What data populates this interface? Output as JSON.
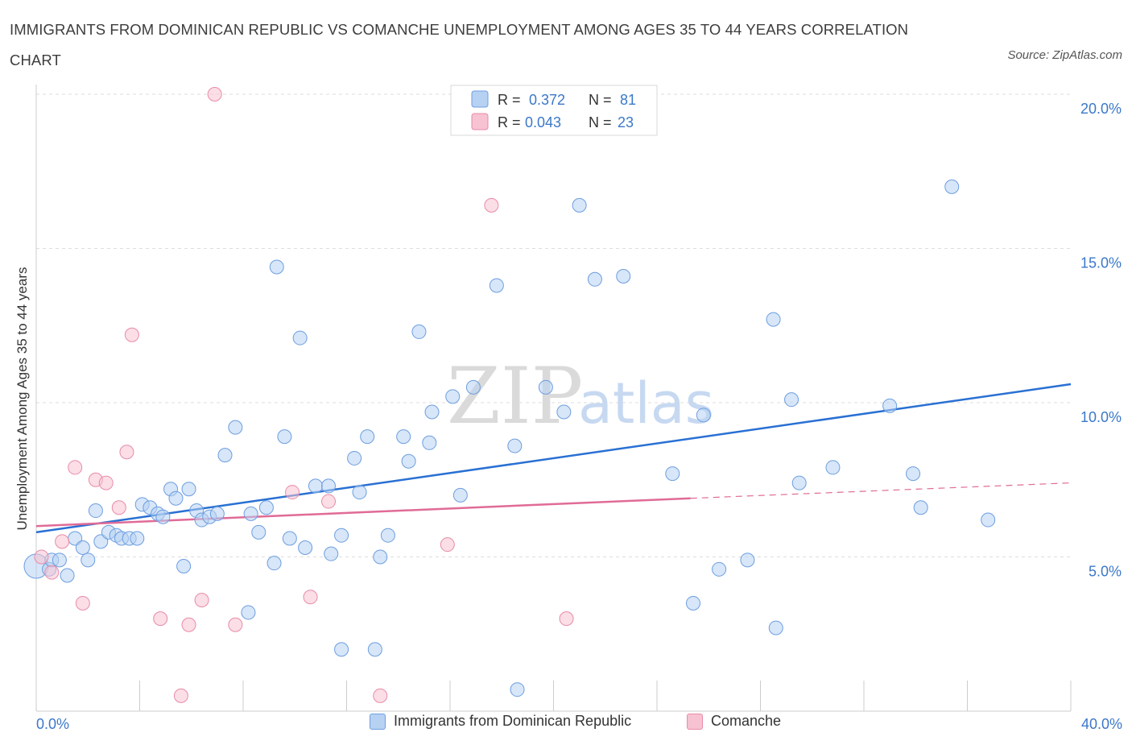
{
  "title": "IMMIGRANTS FROM DOMINICAN REPUBLIC VS COMANCHE UNEMPLOYMENT AMONG AGES 35 TO 44 YEARS CORRELATION CHART",
  "source": "Source: ZipAtlas.com",
  "watermark": {
    "zip": "ZIP",
    "atlas": "atlas"
  },
  "colors": {
    "blue_fill": "#b7d1f3",
    "blue_stroke": "#6d9ee0",
    "blue_line": "#2970d3",
    "pink_fill": "#f7c2d2",
    "pink_stroke": "#e98ba8",
    "pink_line": "#e06b97",
    "axis_text": "#3b78c9",
    "grid": "#dddddd"
  },
  "legend": {
    "rows": [
      {
        "r_label": "R =",
        "r_value": "0.372",
        "n_label": "N =",
        "n_value": "81"
      },
      {
        "r_label": "R =",
        "r_value": "0.043",
        "n_label": "N =",
        "n_value": "23"
      }
    ]
  },
  "chart_data": {
    "type": "scatter",
    "title": "IMMIGRANTS FROM DOMINICAN REPUBLIC VS COMANCHE UNEMPLOYMENT AMONG AGES 35 TO 44 YEARS CORRELATION CHART",
    "xlabel": "",
    "ylabel": "Unemployment Among Ages 35 to 44 years",
    "xlim": [
      0,
      40
    ],
    "ylim": [
      0,
      20
    ],
    "x_tick_labels": [
      "0.0%",
      "40.0%"
    ],
    "y_ticks": [
      {
        "value": 5,
        "label": "5.0%"
      },
      {
        "value": 10,
        "label": "10.0%"
      },
      {
        "value": 15,
        "label": "15.0%"
      },
      {
        "value": 20,
        "label": "20.0%"
      }
    ],
    "grid": true,
    "legend_position": "top-center",
    "series": [
      {
        "name": "Immigrants from Dominican Republic",
        "color": "blue",
        "R": 0.372,
        "N": 81,
        "trend": {
          "x0": 0,
          "y0": 5.8,
          "x1": 40,
          "y1": 10.6
        },
        "points": [
          [
            0.0,
            4.7
          ],
          [
            0.5,
            4.6
          ],
          [
            0.6,
            4.9
          ],
          [
            0.9,
            4.9
          ],
          [
            1.2,
            4.4
          ],
          [
            1.5,
            5.6
          ],
          [
            1.8,
            5.3
          ],
          [
            2.0,
            4.9
          ],
          [
            2.3,
            6.5
          ],
          [
            2.5,
            5.5
          ],
          [
            2.8,
            5.8
          ],
          [
            3.1,
            5.7
          ],
          [
            3.3,
            5.6
          ],
          [
            3.6,
            5.6
          ],
          [
            3.9,
            5.6
          ],
          [
            4.1,
            6.7
          ],
          [
            4.4,
            6.6
          ],
          [
            4.7,
            6.4
          ],
          [
            4.9,
            6.3
          ],
          [
            5.2,
            7.2
          ],
          [
            5.4,
            6.9
          ],
          [
            5.7,
            4.7
          ],
          [
            5.9,
            7.2
          ],
          [
            6.2,
            6.5
          ],
          [
            6.4,
            6.2
          ],
          [
            6.7,
            6.3
          ],
          [
            7.0,
            6.4
          ],
          [
            7.3,
            8.3
          ],
          [
            7.7,
            9.2
          ],
          [
            8.2,
            3.2
          ],
          [
            8.3,
            6.4
          ],
          [
            8.6,
            5.8
          ],
          [
            8.9,
            6.6
          ],
          [
            9.2,
            4.8
          ],
          [
            9.3,
            14.4
          ],
          [
            9.6,
            8.9
          ],
          [
            9.8,
            5.6
          ],
          [
            10.2,
            12.1
          ],
          [
            10.4,
            5.3
          ],
          [
            10.8,
            7.3
          ],
          [
            11.3,
            7.3
          ],
          [
            11.4,
            5.1
          ],
          [
            11.8,
            2.0
          ],
          [
            11.8,
            5.7
          ],
          [
            12.3,
            8.2
          ],
          [
            12.5,
            7.1
          ],
          [
            12.8,
            8.9
          ],
          [
            13.1,
            2.0
          ],
          [
            13.3,
            5.0
          ],
          [
            13.6,
            5.7
          ],
          [
            14.2,
            8.9
          ],
          [
            14.4,
            8.1
          ],
          [
            14.8,
            12.3
          ],
          [
            15.2,
            8.7
          ],
          [
            15.3,
            9.7
          ],
          [
            16.1,
            10.2
          ],
          [
            16.4,
            7.0
          ],
          [
            16.9,
            10.5
          ],
          [
            17.8,
            13.8
          ],
          [
            18.5,
            8.6
          ],
          [
            18.6,
            0.7
          ],
          [
            19.7,
            10.5
          ],
          [
            20.4,
            9.7
          ],
          [
            21.0,
            16.4
          ],
          [
            21.6,
            14.0
          ],
          [
            22.7,
            14.1
          ],
          [
            24.6,
            7.7
          ],
          [
            25.4,
            3.5
          ],
          [
            25.8,
            9.6
          ],
          [
            26.4,
            4.6
          ],
          [
            27.5,
            4.9
          ],
          [
            28.5,
            12.7
          ],
          [
            28.6,
            2.7
          ],
          [
            29.2,
            10.1
          ],
          [
            29.5,
            7.4
          ],
          [
            30.8,
            7.9
          ],
          [
            33.0,
            9.9
          ],
          [
            33.9,
            7.7
          ],
          [
            34.2,
            6.6
          ],
          [
            35.4,
            17.0
          ],
          [
            36.8,
            6.2
          ]
        ]
      },
      {
        "name": "Comanche",
        "color": "pink",
        "R": 0.043,
        "N": 23,
        "trend": {
          "x0": 0,
          "y0": 6.0,
          "x1": 25.3,
          "y1": 6.9,
          "dashed_to_x": 40,
          "dashed_to_y": 7.4
        },
        "points": [
          [
            0.2,
            5.0
          ],
          [
            0.6,
            4.5
          ],
          [
            1.0,
            5.5
          ],
          [
            1.5,
            7.9
          ],
          [
            1.8,
            3.5
          ],
          [
            2.3,
            7.5
          ],
          [
            2.7,
            7.4
          ],
          [
            3.2,
            6.6
          ],
          [
            3.5,
            8.4
          ],
          [
            3.7,
            12.2
          ],
          [
            4.8,
            3.0
          ],
          [
            5.6,
            0.5
          ],
          [
            5.9,
            2.8
          ],
          [
            6.4,
            3.6
          ],
          [
            6.9,
            20.0
          ],
          [
            7.7,
            2.8
          ],
          [
            9.9,
            7.1
          ],
          [
            10.6,
            3.7
          ],
          [
            11.3,
            6.8
          ],
          [
            13.3,
            0.5
          ],
          [
            15.9,
            5.4
          ],
          [
            17.6,
            16.4
          ],
          [
            20.5,
            3.0
          ]
        ]
      }
    ]
  }
}
